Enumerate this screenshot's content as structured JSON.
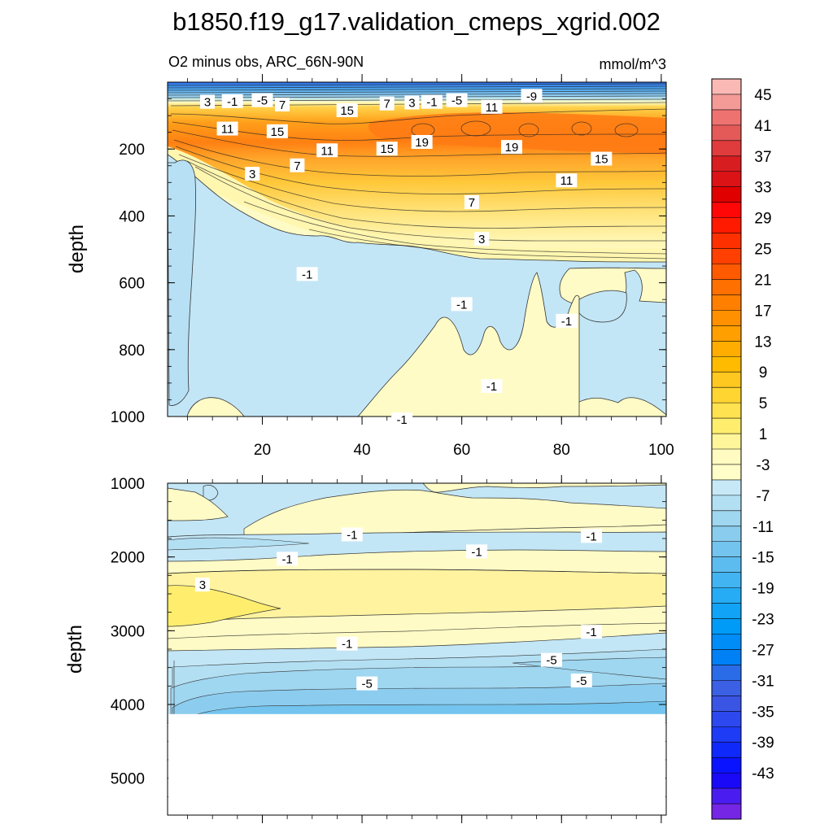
{
  "chart_data": {
    "type": "contour",
    "title": "b1850.f19_g17.validation_cmeps_xgrid.002",
    "subtitle": "O2 minus obs, ARC_66N-90N",
    "units": "mmol/m^3",
    "xlim": [
      1,
      101
    ],
    "x_ticks": [
      "20",
      "40",
      "60",
      "80",
      "100"
    ],
    "x_ticks_values": [
      20,
      40,
      60,
      80,
      100
    ],
    "panels": [
      {
        "name": "upper",
        "ylabel": "depth",
        "ylim": [
          0,
          1000
        ],
        "y_ticks": [
          "200",
          "400",
          "600",
          "800",
          "1000"
        ],
        "y_ticks_values": [
          200,
          400,
          600,
          800,
          1000
        ],
        "contour_labels": [
          {
            "text": "3",
            "x": 9,
            "depth": 60
          },
          {
            "text": "-1",
            "x": 14,
            "depth": 58
          },
          {
            "text": "-5",
            "x": 20,
            "depth": 55
          },
          {
            "text": "7",
            "x": 24,
            "depth": 68
          },
          {
            "text": "15",
            "x": 37,
            "depth": 85
          },
          {
            "text": "7",
            "x": 45,
            "depth": 65
          },
          {
            "text": "3",
            "x": 50,
            "depth": 62
          },
          {
            "text": "-1",
            "x": 54,
            "depth": 60
          },
          {
            "text": "-5",
            "x": 59,
            "depth": 55
          },
          {
            "text": "11",
            "x": 66,
            "depth": 75
          },
          {
            "text": "-9",
            "x": 74,
            "depth": 42
          },
          {
            "text": "11",
            "x": 13,
            "depth": 140
          },
          {
            "text": "15",
            "x": 23,
            "depth": 148
          },
          {
            "text": "11",
            "x": 33,
            "depth": 205
          },
          {
            "text": "15",
            "x": 45,
            "depth": 200
          },
          {
            "text": "19",
            "x": 52,
            "depth": 180
          },
          {
            "text": "19",
            "x": 70,
            "depth": 195
          },
          {
            "text": "15",
            "x": 88,
            "depth": 230
          },
          {
            "text": "3",
            "x": 18,
            "depth": 275
          },
          {
            "text": "7",
            "x": 27,
            "depth": 250
          },
          {
            "text": "11",
            "x": 81,
            "depth": 295
          },
          {
            "text": "7",
            "x": 62,
            "depth": 360
          },
          {
            "text": "3",
            "x": 64,
            "depth": 470
          },
          {
            "text": "-1",
            "x": 29,
            "depth": 575
          },
          {
            "text": "-1",
            "x": 60,
            "depth": 665
          },
          {
            "text": "-1",
            "x": 81,
            "depth": 715
          },
          {
            "text": "-1",
            "x": 66,
            "depth": 910
          },
          {
            "text": "-1",
            "x": 48,
            "depth": 1010
          }
        ]
      },
      {
        "name": "lower",
        "ylabel": "depth",
        "ylim": [
          1000,
          5500
        ],
        "y_ticks": [
          "1000",
          "2000",
          "3000",
          "4000",
          "5000"
        ],
        "y_ticks_values": [
          1000,
          2000,
          3000,
          4000,
          5000
        ],
        "data_bottom_depth": 4130,
        "contour_labels": [
          {
            "text": "-1",
            "x": 38,
            "depth": 1700
          },
          {
            "text": "-1",
            "x": 25,
            "depth": 2030
          },
          {
            "text": "-1",
            "x": 63,
            "depth": 1930
          },
          {
            "text": "-1",
            "x": 86,
            "depth": 1720
          },
          {
            "text": "3",
            "x": 8,
            "depth": 2380
          },
          {
            "text": "-1",
            "x": 37,
            "depth": 3180
          },
          {
            "text": "-1",
            "x": 86,
            "depth": 3020
          },
          {
            "text": "-5",
            "x": 78,
            "depth": 3400
          },
          {
            "text": "-5",
            "x": 41,
            "depth": 3720
          },
          {
            "text": "-5",
            "x": 84,
            "depth": 3680
          }
        ]
      }
    ],
    "colorbar": {
      "labels": [
        "45",
        "41",
        "37",
        "33",
        "29",
        "25",
        "21",
        "17",
        "13",
        "9",
        "5",
        "1",
        "-3",
        "-7",
        "-11",
        "-15",
        "-19",
        "-23",
        "-27",
        "-31",
        "-35",
        "-39",
        "-43"
      ],
      "colors": [
        "#fbb9b6",
        "#f49a97",
        "#ee7270",
        "#e35a58",
        "#e03c3d",
        "#d71d20",
        "#db1216",
        "#e00000",
        "#ff0707",
        "#ff1a00",
        "#ff3000",
        "#ff4000",
        "#ff5a00",
        "#ff7000",
        "#ff8000",
        "#ff9000",
        "#ff9f00",
        "#ffad00",
        "#ffbb00",
        "#ffc820",
        "#ffd531",
        "#ffe24f",
        "#ffee6e",
        "#fff59a",
        "#fffbc1",
        "#fffec8",
        "#c7e9f7",
        "#b3dff3",
        "#9fd6f0",
        "#8acced",
        "#73c4ee",
        "#5cbcf0",
        "#42b4f2",
        "#26acf4",
        "#11a4f6",
        "#009bf7",
        "#008df7",
        "#0080f5",
        "#2a6ce8",
        "#3b60e4",
        "#3a54e4",
        "#2d48ee",
        "#1e3cf6",
        "#1029fb",
        "#0913ff",
        "#1a09f7",
        "#4b1cf0",
        "#7426e4"
      ]
    },
    "colors": {
      "deep_negative": "#8ccdef",
      "negative": "#a9daf3",
      "near_zero_negative": "#c3e6f6",
      "near_zero_positive": "#fffbc1",
      "positive_low": "#fff3a0",
      "positive_mid": "#ffd24a",
      "positive_high": "#ff9f1a",
      "positive_peak": "#ff7a14"
    }
  }
}
